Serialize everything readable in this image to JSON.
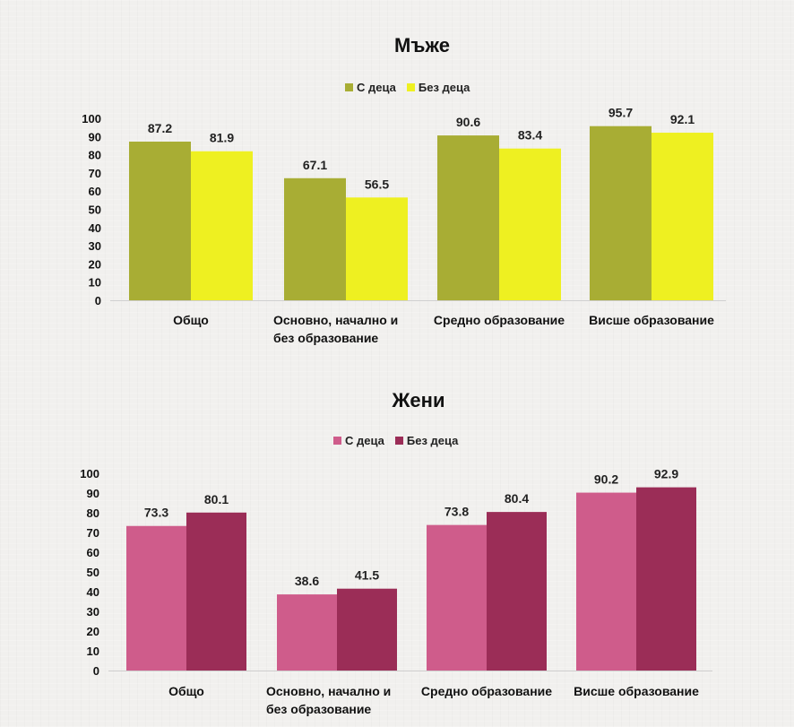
{
  "chart_data": [
    {
      "type": "bar",
      "title": "Мъже",
      "categories": [
        "Общо",
        "Основно, начално и без образование",
        "Средно образование",
        "Висше образование"
      ],
      "category_lines": [
        [
          "Общо"
        ],
        [
          "Основно, начално и",
          "без образование"
        ],
        [
          "Средно образование"
        ],
        [
          "Висше образование"
        ]
      ],
      "series": [
        {
          "name": "С деца",
          "color": "#a8ad34",
          "values": [
            87.2,
            67.1,
            90.6,
            95.7
          ]
        },
        {
          "name": "Без деца",
          "color": "#eef021",
          "values": [
            81.9,
            56.5,
            83.4,
            92.1
          ]
        }
      ],
      "ylim": [
        0,
        100
      ],
      "yticks": [
        0,
        10,
        20,
        30,
        40,
        50,
        60,
        70,
        80,
        90,
        100
      ],
      "xlabel": "",
      "ylabel": "",
      "legend": "top",
      "grid": false
    },
    {
      "type": "bar",
      "title": "Жени",
      "categories": [
        "Общо",
        "Основно, начално и без образование",
        "Средно образование",
        "Висше образование"
      ],
      "category_lines": [
        [
          "Общо"
        ],
        [
          "Основно, начално и",
          "без образование"
        ],
        [
          "Средно образование"
        ],
        [
          "Висше образование"
        ]
      ],
      "series": [
        {
          "name": "С деца",
          "color": "#cf5c8b",
          "values": [
            73.3,
            38.6,
            73.8,
            90.2
          ]
        },
        {
          "name": "Без деца",
          "color": "#9b2d57",
          "values": [
            80.1,
            41.5,
            80.4,
            92.9
          ]
        }
      ],
      "ylim": [
        0,
        100
      ],
      "yticks": [
        0,
        10,
        20,
        30,
        40,
        50,
        60,
        70,
        80,
        90,
        100
      ],
      "xlabel": "",
      "ylabel": "",
      "legend": "top",
      "grid": false
    }
  ]
}
